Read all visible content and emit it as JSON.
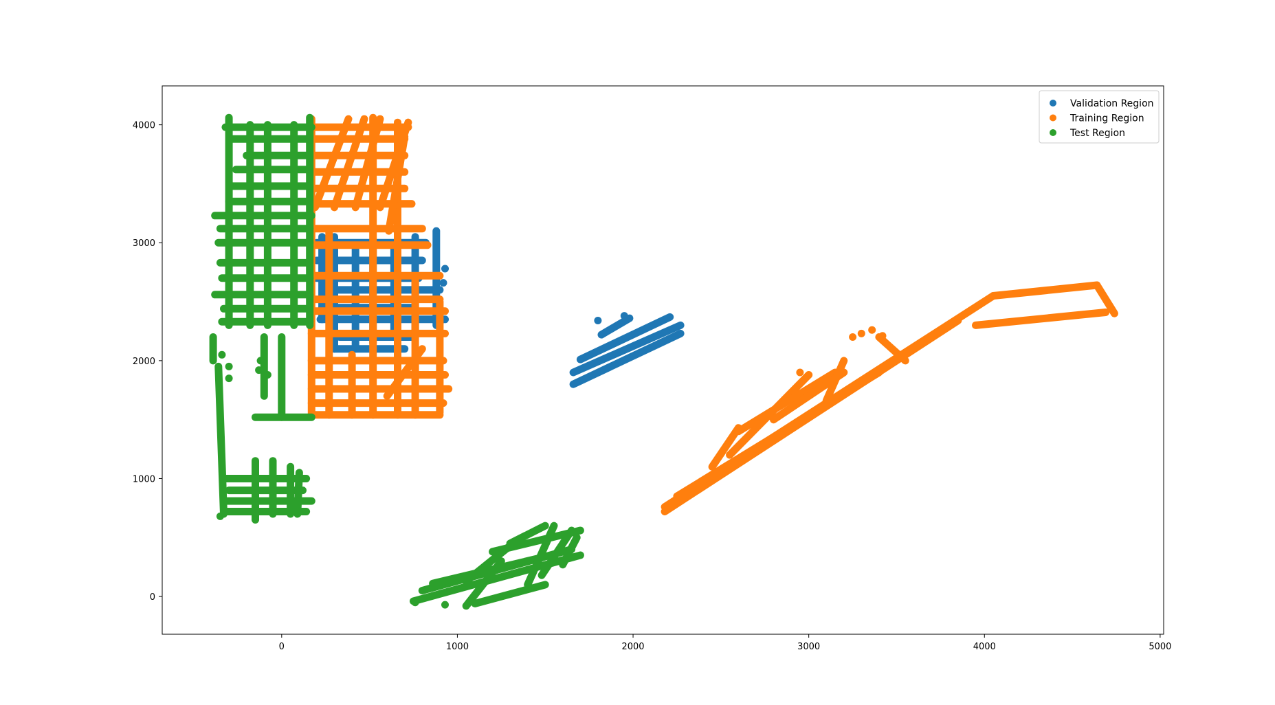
{
  "chart_data": {
    "type": "scatter",
    "title": "",
    "xlabel": "",
    "ylabel": "",
    "xlim": [
      -680,
      5020
    ],
    "ylim": [
      -320,
      4330
    ],
    "xticks": [
      0,
      1000,
      2000,
      3000,
      4000,
      5000
    ],
    "yticks": [
      0,
      1000,
      2000,
      3000,
      4000
    ],
    "xtick_labels": [
      "0",
      "1000",
      "2000",
      "3000",
      "4000",
      "5000"
    ],
    "ytick_labels": [
      "0",
      "1000",
      "2000",
      "3000",
      "4000"
    ],
    "grid": false,
    "legend_position": "top-right",
    "series": [
      {
        "name": "Validation Region",
        "color": "#1f77b4",
        "segments": [
          [
            [
              200,
              3000
            ],
            [
              820,
              3000
            ]
          ],
          [
            [
              200,
              2850
            ],
            [
              800,
              2850
            ]
          ],
          [
            [
              200,
              2700
            ],
            [
              780,
              2700
            ]
          ],
          [
            [
              280,
              2600
            ],
            [
              900,
              2600
            ]
          ],
          [
            [
              230,
              2450
            ],
            [
              760,
              2450
            ]
          ],
          [
            [
              220,
              2350
            ],
            [
              930,
              2350
            ]
          ],
          [
            [
              330,
              2200
            ],
            [
              760,
              2200
            ]
          ],
          [
            [
              300,
              2100
            ],
            [
              700,
              2100
            ]
          ],
          [
            [
              230,
              2350
            ],
            [
              230,
              3050
            ]
          ],
          [
            [
              300,
              2100
            ],
            [
              300,
              3050
            ]
          ],
          [
            [
              420,
              2100
            ],
            [
              420,
              2950
            ]
          ],
          [
            [
              520,
              2150
            ],
            [
              520,
              3000
            ]
          ],
          [
            [
              640,
              2200
            ],
            [
              640,
              2950
            ]
          ],
          [
            [
              760,
              2250
            ],
            [
              760,
              3050
            ]
          ],
          [
            [
              880,
              2300
            ],
            [
              880,
              3100
            ]
          ],
          [
            [
              1660,
              1800
            ],
            [
              2270,
              2230
            ]
          ],
          [
            [
              1660,
              1900
            ],
            [
              2270,
              2300
            ]
          ],
          [
            [
              1700,
              2010
            ],
            [
              2210,
              2370
            ]
          ],
          [
            [
              1820,
              2220
            ],
            [
              1980,
              2360
            ]
          ]
        ],
        "points": [
          [
            930,
            2780
          ],
          [
            900,
            2320
          ],
          [
            920,
            2660
          ],
          [
            1800,
            2340
          ],
          [
            1950,
            2380
          ]
        ]
      },
      {
        "name": "Training Region",
        "color": "#ff7f0e",
        "segments": [
          [
            [
              170,
              3980
            ],
            [
              720,
              3980
            ]
          ],
          [
            [
              170,
              3880
            ],
            [
              700,
              3880
            ]
          ],
          [
            [
              170,
              3740
            ],
            [
              700,
              3740
            ]
          ],
          [
            [
              170,
              3600
            ],
            [
              700,
              3600
            ]
          ],
          [
            [
              170,
              3460
            ],
            [
              700,
              3460
            ]
          ],
          [
            [
              170,
              3330
            ],
            [
              740,
              3330
            ]
          ],
          [
            [
              170,
              3120
            ],
            [
              800,
              3120
            ]
          ],
          [
            [
              180,
              2980
            ],
            [
              830,
              2980
            ]
          ],
          [
            [
              170,
              2720
            ],
            [
              900,
              2720
            ]
          ],
          [
            [
              180,
              2520
            ],
            [
              900,
              2520
            ]
          ],
          [
            [
              170,
              2420
            ],
            [
              930,
              2420
            ]
          ],
          [
            [
              170,
              2230
            ],
            [
              930,
              2230
            ]
          ],
          [
            [
              170,
              2000
            ],
            [
              920,
              2000
            ]
          ],
          [
            [
              170,
              1880
            ],
            [
              930,
              1880
            ]
          ],
          [
            [
              170,
              1760
            ],
            [
              950,
              1760
            ]
          ],
          [
            [
              170,
              1640
            ],
            [
              920,
              1640
            ]
          ],
          [
            [
              170,
              1540
            ],
            [
              900,
              1540
            ]
          ],
          [
            [
              170,
              1540
            ],
            [
              170,
              4050
            ]
          ],
          [
            [
              270,
              1540
            ],
            [
              270,
              3100
            ]
          ],
          [
            [
              400,
              1540
            ],
            [
              400,
              2050
            ]
          ],
          [
            [
              520,
              1540
            ],
            [
              520,
              4060
            ]
          ],
          [
            [
              660,
              1540
            ],
            [
              660,
              4020
            ]
          ],
          [
            [
              760,
              1540
            ],
            [
              760,
              2700
            ]
          ],
          [
            [
              900,
              1560
            ],
            [
              900,
              2500
            ]
          ],
          [
            [
              190,
              3300
            ],
            [
              380,
              4050
            ]
          ],
          [
            [
              300,
              3300
            ],
            [
              470,
              4050
            ]
          ],
          [
            [
              420,
              3300
            ],
            [
              560,
              4050
            ]
          ],
          [
            [
              560,
              3300
            ],
            [
              720,
              4020
            ]
          ],
          [
            [
              610,
              3100
            ],
            [
              700,
              3900
            ]
          ],
          [
            [
              600,
              1700
            ],
            [
              800,
              2100
            ]
          ],
          [
            [
              2180,
              760
            ],
            [
              4050,
              2550
            ]
          ],
          [
            [
              2180,
              720
            ],
            [
              3850,
              2340
            ]
          ],
          [
            [
              2250,
              850
            ],
            [
              3400,
              1900
            ]
          ],
          [
            [
              2550,
              1200
            ],
            [
              3000,
              1880
            ]
          ],
          [
            [
              2600,
              1400
            ],
            [
              3150,
              1900
            ]
          ],
          [
            [
              2800,
              1500
            ],
            [
              3200,
              1900
            ]
          ],
          [
            [
              2450,
              1100
            ],
            [
              2600,
              1430
            ]
          ],
          [
            [
              3100,
              1660
            ],
            [
              3200,
              2000
            ]
          ],
          [
            [
              4050,
              2550
            ],
            [
              4640,
              2640
            ]
          ],
          [
            [
              3950,
              2300
            ],
            [
              4690,
              2410
            ]
          ],
          [
            [
              4640,
              2640
            ],
            [
              4740,
              2400
            ]
          ],
          [
            [
              3400,
              2200
            ],
            [
              3550,
              2000
            ]
          ]
        ],
        "points": [
          [
            3300,
            2230
          ],
          [
            3360,
            2260
          ],
          [
            2950,
            1900
          ],
          [
            3250,
            2200
          ],
          [
            3420,
            2210
          ]
        ]
      },
      {
        "name": "Test Region",
        "color": "#2ca02c",
        "segments": [
          [
            [
              -320,
              3980
            ],
            [
              170,
              3980
            ]
          ],
          [
            [
              -280,
              3880
            ],
            [
              140,
              3880
            ]
          ],
          [
            [
              -200,
              3740
            ],
            [
              150,
              3740
            ]
          ],
          [
            [
              -260,
              3620
            ],
            [
              150,
              3620
            ]
          ],
          [
            [
              -280,
              3480
            ],
            [
              150,
              3480
            ]
          ],
          [
            [
              -300,
              3350
            ],
            [
              150,
              3350
            ]
          ],
          [
            [
              -380,
              3230
            ],
            [
              170,
              3230
            ]
          ],
          [
            [
              -350,
              3120
            ],
            [
              160,
              3120
            ]
          ],
          [
            [
              -360,
              3000
            ],
            [
              160,
              3000
            ]
          ],
          [
            [
              -350,
              2830
            ],
            [
              150,
              2830
            ]
          ],
          [
            [
              -340,
              2700
            ],
            [
              160,
              2700
            ]
          ],
          [
            [
              -380,
              2560
            ],
            [
              160,
              2560
            ]
          ],
          [
            [
              -330,
              2440
            ],
            [
              150,
              2440
            ]
          ],
          [
            [
              -340,
              2330
            ],
            [
              160,
              2330
            ]
          ],
          [
            [
              -300,
              2300
            ],
            [
              -300,
              4060
            ]
          ],
          [
            [
              -180,
              2300
            ],
            [
              -180,
              4000
            ]
          ],
          [
            [
              -80,
              2300
            ],
            [
              -80,
              4000
            ]
          ],
          [
            [
              70,
              2300
            ],
            [
              70,
              4000
            ]
          ],
          [
            [
              160,
              2300
            ],
            [
              160,
              4060
            ]
          ],
          [
            [
              -390,
              2200
            ],
            [
              -390,
              2000
            ]
          ],
          [
            [
              -360,
              1950
            ],
            [
              -330,
              700
            ]
          ],
          [
            [
              -150,
              1520
            ],
            [
              170,
              1520
            ]
          ],
          [
            [
              0,
              1520
            ],
            [
              0,
              2200
            ]
          ],
          [
            [
              -100,
              1700
            ],
            [
              -100,
              2200
            ]
          ],
          [
            [
              -320,
              1000
            ],
            [
              140,
              1000
            ]
          ],
          [
            [
              -300,
              900
            ],
            [
              120,
              900
            ]
          ],
          [
            [
              -310,
              810
            ],
            [
              170,
              810
            ]
          ],
          [
            [
              -320,
              720
            ],
            [
              140,
              720
            ]
          ],
          [
            [
              -150,
              650
            ],
            [
              -150,
              1150
            ]
          ],
          [
            [
              -50,
              700
            ],
            [
              -50,
              1150
            ]
          ],
          [
            [
              50,
              700
            ],
            [
              50,
              1100
            ]
          ],
          [
            [
              90,
              700
            ],
            [
              100,
              1050
            ]
          ],
          [
            [
              750,
              -40
            ],
            [
              1700,
              350
            ]
          ],
          [
            [
              800,
              50
            ],
            [
              1650,
              400
            ]
          ],
          [
            [
              860,
              110
            ],
            [
              1480,
              330
            ]
          ],
          [
            [
              1050,
              130
            ],
            [
              1300,
              430
            ]
          ],
          [
            [
              1200,
              380
            ],
            [
              1700,
              560
            ]
          ],
          [
            [
              1300,
              450
            ],
            [
              1500,
              600
            ]
          ],
          [
            [
              1050,
              -80
            ],
            [
              1250,
              300
            ]
          ],
          [
            [
              1100,
              -60
            ],
            [
              1500,
              100
            ]
          ],
          [
            [
              1400,
              100
            ],
            [
              1550,
              600
            ]
          ],
          [
            [
              1480,
              180
            ],
            [
              1650,
              560
            ]
          ],
          [
            [
              1600,
              270
            ],
            [
              1680,
              500
            ]
          ]
        ],
        "points": [
          [
            -340,
            2050
          ],
          [
            -300,
            1850
          ],
          [
            -300,
            1950
          ],
          [
            -130,
            1920
          ],
          [
            -80,
            1880
          ],
          [
            -120,
            2000
          ],
          [
            930,
            -70
          ],
          [
            760,
            -50
          ],
          [
            -350,
            680
          ]
        ]
      }
    ]
  }
}
